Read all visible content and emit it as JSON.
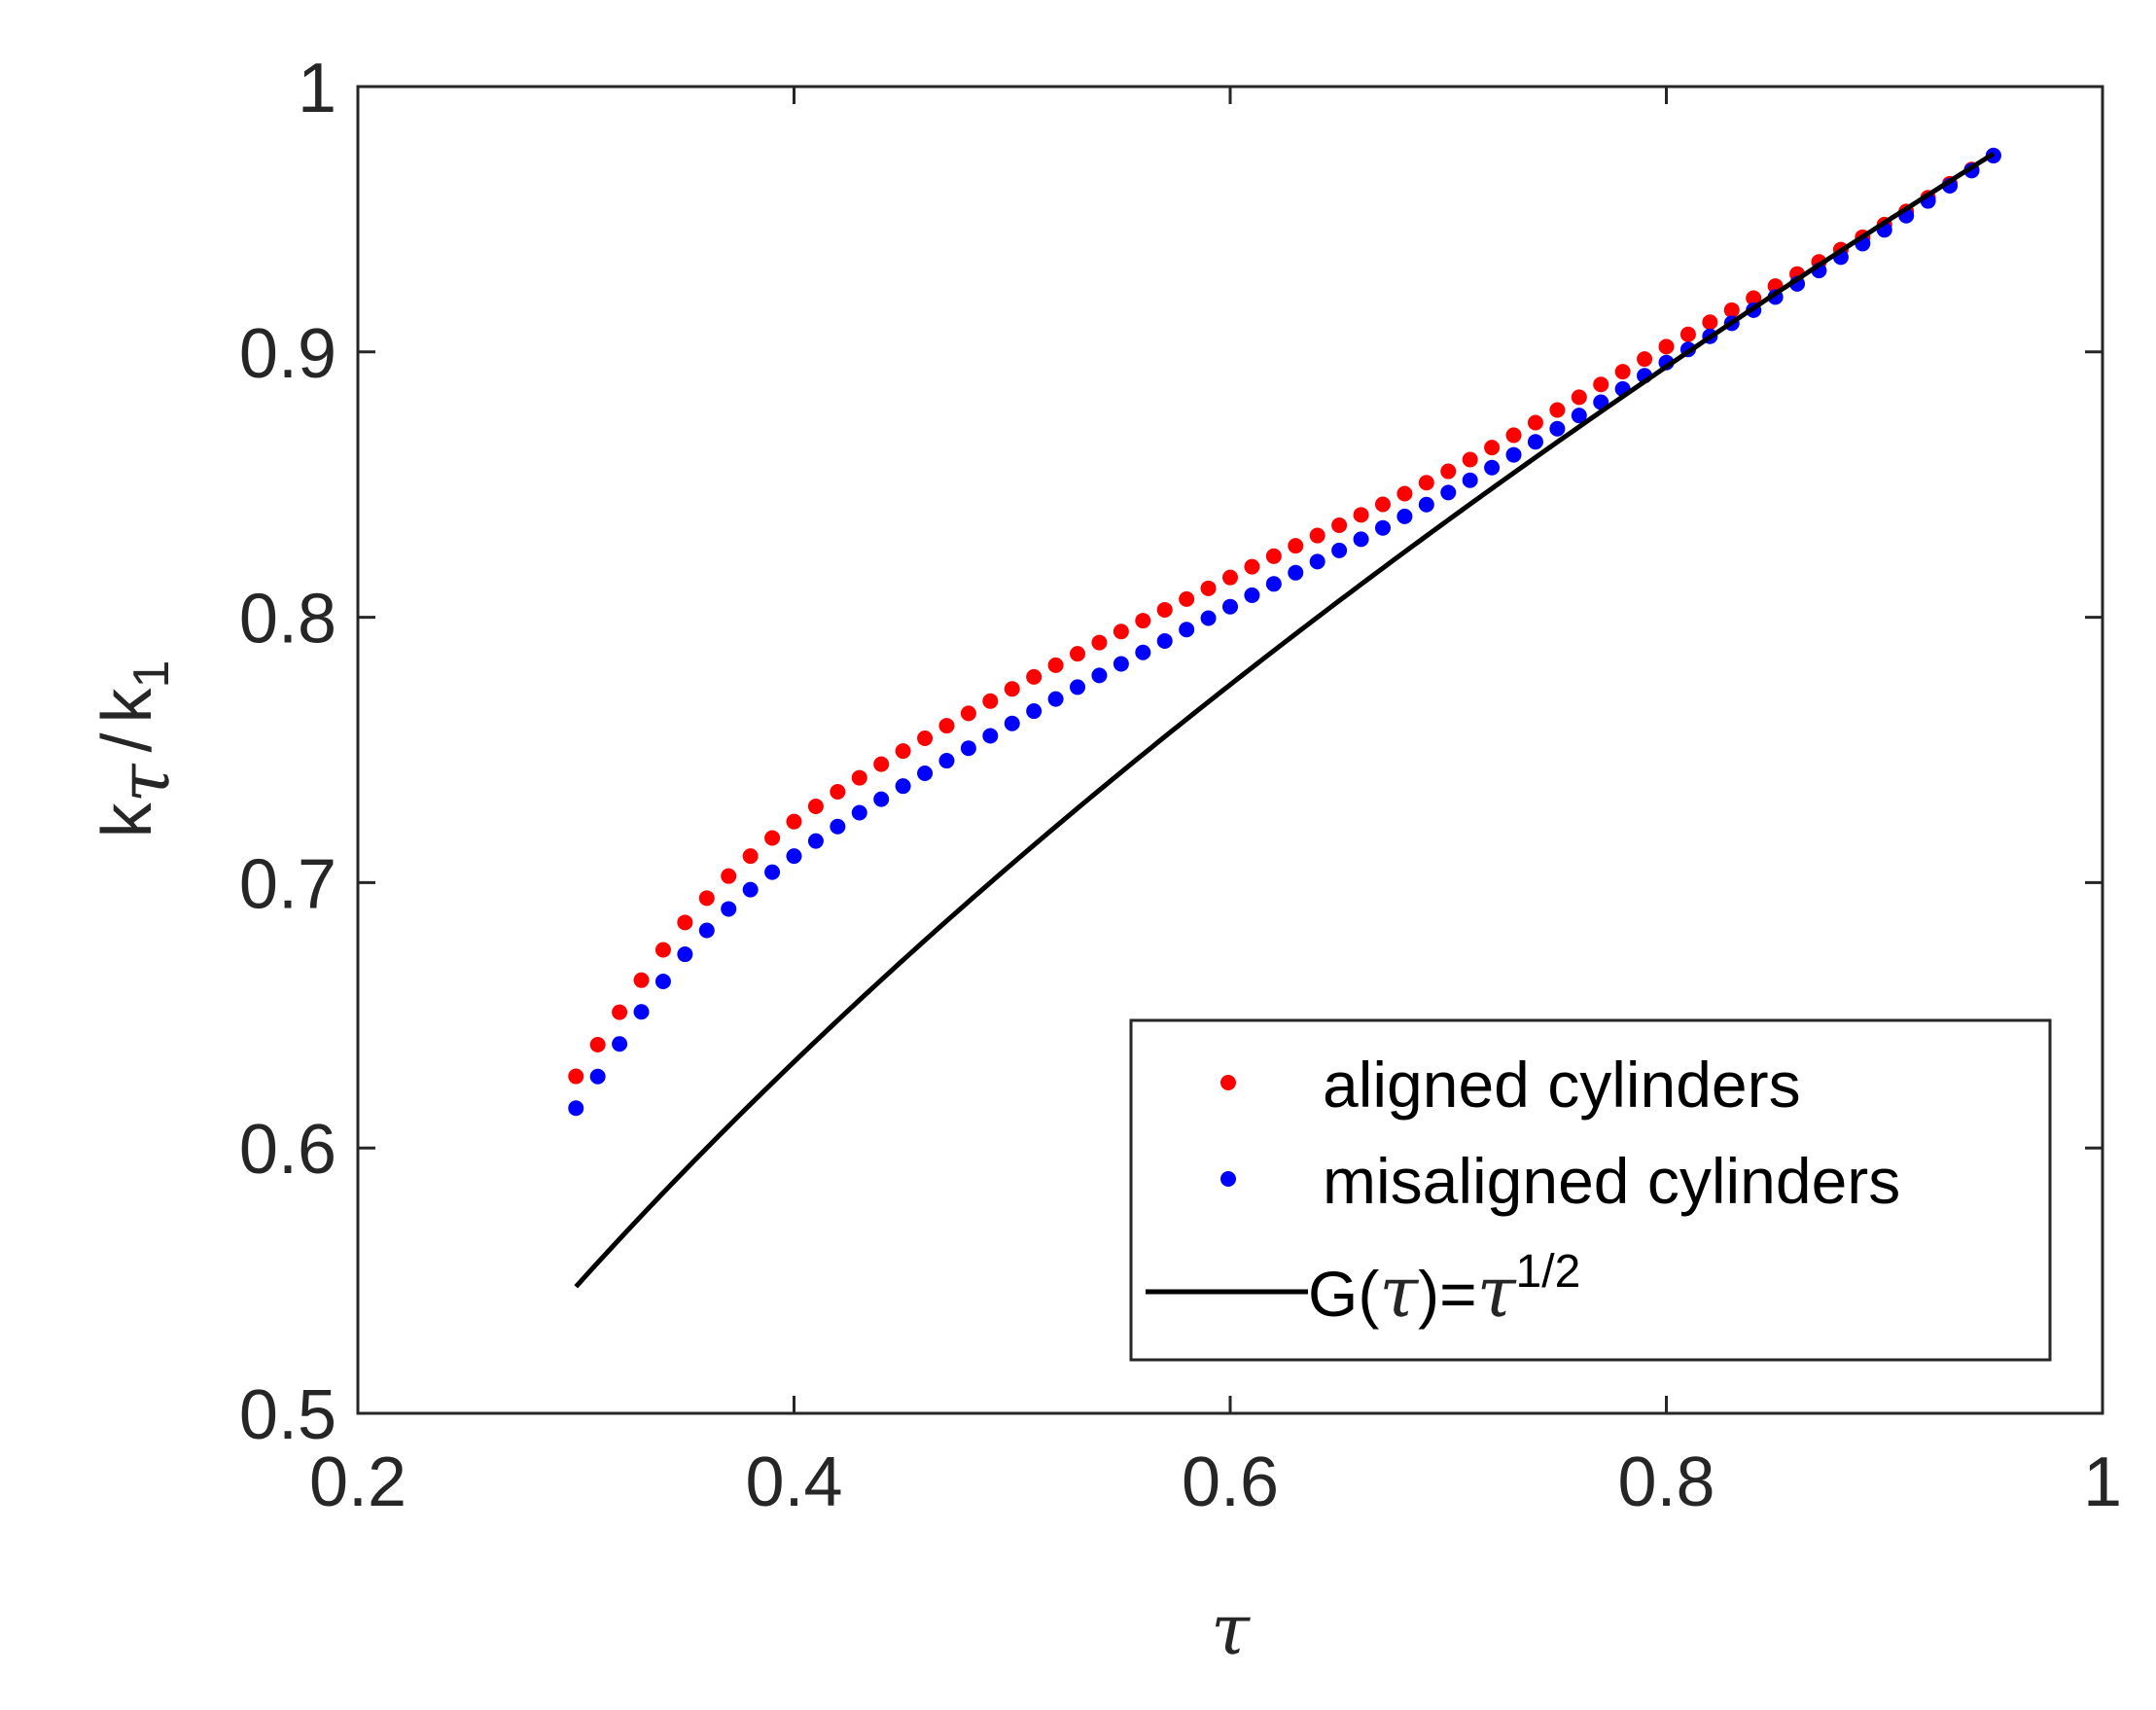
{
  "chart_data": {
    "type": "scatter",
    "xlabel": "τ",
    "ylabel": {
      "k": "k",
      "tau_sub": "τ",
      "slash": "/",
      "k2": "k",
      "one_sub": "1"
    },
    "xlim": [
      0.2,
      1.0
    ],
    "ylim": [
      0.5,
      1.0
    ],
    "x_ticks": [
      "0.2",
      "0.4",
      "0.6",
      "0.8",
      "1"
    ],
    "y_ticks": [
      "0.5",
      "0.6",
      "0.7",
      "0.8",
      "0.9",
      "1"
    ],
    "grid": false,
    "legend_position": "bottom-right",
    "series": [
      {
        "name": "aligned cylinders",
        "color": "#ff0000",
        "marker": "dot",
        "x_range": [
          0.3,
          0.95
        ],
        "count": 66,
        "y_control": [
          [
            0.3,
            0.627
          ],
          [
            0.35,
            0.685
          ],
          [
            0.4,
            0.723
          ],
          [
            0.5,
            0.773
          ],
          [
            0.6,
            0.815
          ],
          [
            0.7,
            0.855
          ],
          [
            0.8,
            0.902
          ],
          [
            0.9,
            0.948
          ],
          [
            0.95,
            0.974
          ]
        ]
      },
      {
        "name": "misaligned cylinders",
        "color": "#0000ff",
        "marker": "dot",
        "x_range": [
          0.3,
          0.95
        ],
        "count": 66,
        "y_control": [
          [
            0.3,
            0.615
          ],
          [
            0.35,
            0.673
          ],
          [
            0.4,
            0.71
          ],
          [
            0.5,
            0.76
          ],
          [
            0.6,
            0.804
          ],
          [
            0.7,
            0.847
          ],
          [
            0.8,
            0.896
          ],
          [
            0.9,
            0.946
          ],
          [
            0.95,
            0.974
          ]
        ]
      },
      {
        "name": "G(τ)=τ^1/2",
        "color": "#000000",
        "marker": "line",
        "function": "sqrt",
        "x_range": [
          0.3,
          0.95
        ]
      }
    ],
    "legend": {
      "items": [
        "aligned cylinders",
        "misaligned cylinders"
      ],
      "g_label": {
        "prefix": "G(",
        "tau": "τ",
        "mid": ")=",
        "tau2": "τ",
        "exp": "1/2"
      }
    }
  }
}
